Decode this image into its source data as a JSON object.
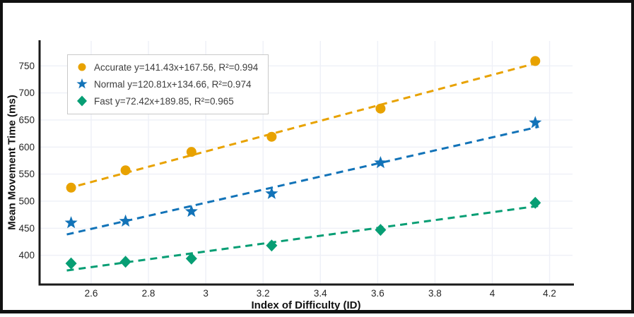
{
  "chart_data": {
    "type": "scatter",
    "title": "",
    "xlabel": "Index of Difficulty (ID)",
    "ylabel": "Mean Movement Time (ms)",
    "xlim": [
      2.42,
      4.28
    ],
    "ylim": [
      346,
      796
    ],
    "x_ticks": [
      2.6,
      2.8,
      3,
      3.2,
      3.4,
      3.6,
      3.8,
      4,
      4.2
    ],
    "x_tick_labels": [
      "2.6",
      "2.8",
      "3",
      "3.2",
      "3.4",
      "3.6",
      "3.8",
      "4",
      "4.2"
    ],
    "y_ticks": [
      400,
      450,
      500,
      550,
      600,
      650,
      700,
      750
    ],
    "y_tick_labels": [
      "400",
      "450",
      "500",
      "550",
      "600",
      "650",
      "700",
      "750"
    ],
    "grid": true,
    "legend_position": "top-left",
    "line_style": "dashed",
    "x": [
      2.53,
      2.72,
      2.95,
      3.23,
      3.61,
      4.15
    ],
    "series": [
      {
        "name": "Accurate",
        "marker": "circle",
        "color": "#E8A200",
        "values": [
          525,
          557,
          591,
          619,
          671,
          759
        ],
        "fit": {
          "slope": 141.43,
          "intercept": 167.56,
          "r2": 0.994
        },
        "legend_label": "Accurate y=141.43x+167.56, R²=0.994"
      },
      {
        "name": "Normal",
        "marker": "star",
        "color": "#1273B8",
        "values": [
          460,
          463,
          481,
          514,
          571,
          645
        ],
        "fit": {
          "slope": 120.81,
          "intercept": 134.66,
          "r2": 0.974
        },
        "legend_label": "Normal y=120.81x+134.66, R²=0.974"
      },
      {
        "name": "Fast",
        "marker": "diamond",
        "color": "#079E74",
        "values": [
          385,
          388,
          394,
          418,
          447,
          497
        ],
        "fit": {
          "slope": 72.42,
          "intercept": 189.85,
          "r2": 0.965
        },
        "legend_label": "Fast y=72.42x+189.85, R²=0.965"
      }
    ]
  }
}
